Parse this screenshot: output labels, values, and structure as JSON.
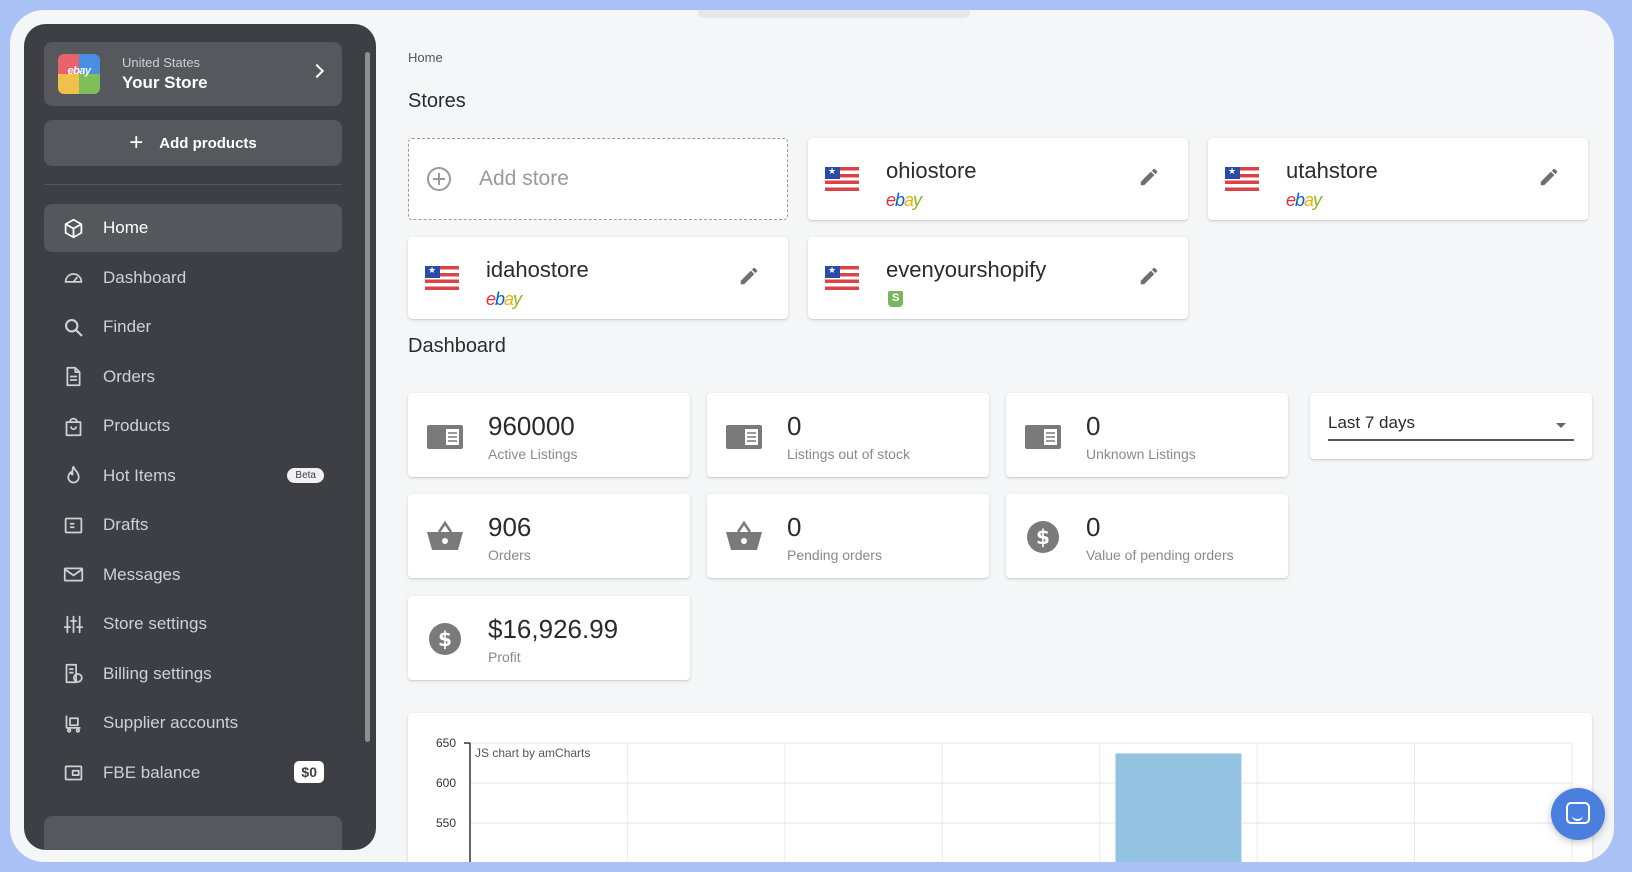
{
  "sidebar": {
    "store": {
      "country": "United States",
      "name": "Your Store",
      "logo_text": "ebay"
    },
    "add_products_label": "Add products",
    "items": [
      {
        "label": "Home",
        "icon": "cube-icon",
        "active": true
      },
      {
        "label": "Dashboard",
        "icon": "gauge-icon"
      },
      {
        "label": "Finder",
        "icon": "search-icon"
      },
      {
        "label": "Orders",
        "icon": "document-icon"
      },
      {
        "label": "Products",
        "icon": "bag-icon"
      },
      {
        "label": "Hot Items",
        "icon": "flame-icon",
        "badge": "Beta"
      },
      {
        "label": "Drafts",
        "icon": "drafts-icon"
      },
      {
        "label": "Messages",
        "icon": "mail-icon"
      },
      {
        "label": "Store settings",
        "icon": "sliders-icon"
      },
      {
        "label": "Billing settings",
        "icon": "billing-icon"
      },
      {
        "label": "Supplier accounts",
        "icon": "supplier-icon"
      },
      {
        "label": "FBE balance",
        "icon": "wallet-icon",
        "badge": "$0"
      }
    ]
  },
  "main": {
    "breadcrumb": "Home",
    "stores_title": "Stores",
    "add_store_label": "Add store",
    "stores": [
      {
        "name": "ohiostore",
        "platform": "ebay"
      },
      {
        "name": "utahstore",
        "platform": "ebay"
      },
      {
        "name": "idahostore",
        "platform": "ebay"
      },
      {
        "name": "evenyourshopify",
        "platform": "shopify"
      }
    ],
    "dashboard_title": "Dashboard",
    "stats": [
      {
        "value": "960000",
        "label": "Active Listings",
        "icon": "listing-icon"
      },
      {
        "value": "0",
        "label": "Listings out of stock",
        "icon": "listing-icon"
      },
      {
        "value": "0",
        "label": "Unknown Listings",
        "icon": "listing-icon"
      },
      {
        "value": "906",
        "label": "Orders",
        "icon": "basket-icon"
      },
      {
        "value": "0",
        "label": "Pending orders",
        "icon": "basket-icon"
      },
      {
        "value": "0",
        "label": "Value of pending orders",
        "icon": "dollar-icon"
      },
      {
        "value": "$16,926.99",
        "label": "Profit",
        "icon": "dollar-icon"
      }
    ],
    "date_range": "Last 7 days"
  },
  "chart_data": {
    "type": "bar",
    "credit": "JS chart by amCharts",
    "y_ticks": [
      650,
      600,
      550
    ],
    "ylim": [
      520,
      660
    ],
    "categories": [
      "",
      "",
      "",
      "",
      "",
      "",
      ""
    ],
    "values": [
      null,
      null,
      null,
      null,
      637,
      null,
      null
    ],
    "bar_color": "#94c3e2",
    "grid": true
  },
  "colors": {
    "sidebar": "#3d3f44",
    "accent": "#4a7fe0",
    "frame": "#a9c1f5"
  }
}
